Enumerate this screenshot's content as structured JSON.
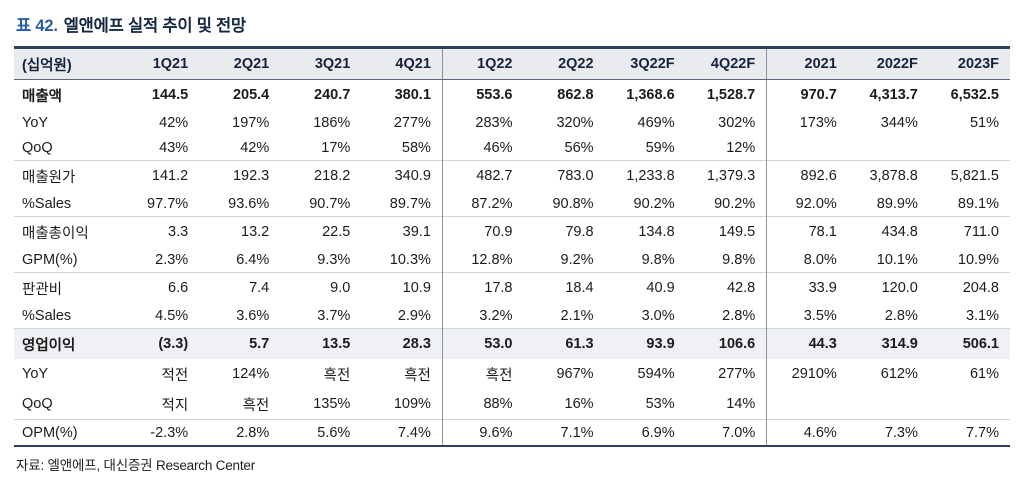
{
  "title": {
    "prefix": "표 42.",
    "text": "엘앤에프 실적 추이 및 전망"
  },
  "table": {
    "unit_header": "(십억원)",
    "columns": [
      "1Q21",
      "2Q21",
      "3Q21",
      "4Q21",
      "1Q22",
      "2Q22",
      "3Q22F",
      "4Q22F",
      "2021",
      "2022F",
      "2023F"
    ],
    "divider_after_columns": [
      3,
      7
    ],
    "rows": [
      {
        "label": "매출액",
        "bold": true,
        "sep": false,
        "highlight": false,
        "values": [
          "144.5",
          "205.4",
          "240.7",
          "380.1",
          "553.6",
          "862.8",
          "1,368.6",
          "1,528.7",
          "970.7",
          "4,313.7",
          "6,532.5"
        ]
      },
      {
        "label": "YoY",
        "bold": false,
        "sep": false,
        "highlight": false,
        "values": [
          "42%",
          "197%",
          "186%",
          "277%",
          "283%",
          "320%",
          "469%",
          "302%",
          "173%",
          "344%",
          "51%"
        ]
      },
      {
        "label": "QoQ",
        "bold": false,
        "sep": false,
        "highlight": false,
        "values": [
          "43%",
          "42%",
          "17%",
          "58%",
          "46%",
          "56%",
          "59%",
          "12%",
          "",
          "",
          ""
        ]
      },
      {
        "label": "매출원가",
        "bold": false,
        "sep": true,
        "highlight": false,
        "values": [
          "141.2",
          "192.3",
          "218.2",
          "340.9",
          "482.7",
          "783.0",
          "1,233.8",
          "1,379.3",
          "892.6",
          "3,878.8",
          "5,821.5"
        ]
      },
      {
        "label": "%Sales",
        "bold": false,
        "sep": false,
        "highlight": false,
        "values": [
          "97.7%",
          "93.6%",
          "90.7%",
          "89.7%",
          "87.2%",
          "90.8%",
          "90.2%",
          "90.2%",
          "92.0%",
          "89.9%",
          "89.1%"
        ]
      },
      {
        "label": "매출총이익",
        "bold": false,
        "sep": true,
        "highlight": false,
        "values": [
          "3.3",
          "13.2",
          "22.5",
          "39.1",
          "70.9",
          "79.8",
          "134.8",
          "149.5",
          "78.1",
          "434.8",
          "711.0"
        ]
      },
      {
        "label": "GPM(%)",
        "bold": false,
        "sep": false,
        "highlight": false,
        "values": [
          "2.3%",
          "6.4%",
          "9.3%",
          "10.3%",
          "12.8%",
          "9.2%",
          "9.8%",
          "9.8%",
          "8.0%",
          "10.1%",
          "10.9%"
        ]
      },
      {
        "label": "판관비",
        "bold": false,
        "sep": true,
        "highlight": false,
        "values": [
          "6.6",
          "7.4",
          "9.0",
          "10.9",
          "17.8",
          "18.4",
          "40.9",
          "42.8",
          "33.9",
          "120.0",
          "204.8"
        ]
      },
      {
        "label": "%Sales",
        "bold": false,
        "sep": false,
        "highlight": false,
        "values": [
          "4.5%",
          "3.6%",
          "3.7%",
          "2.9%",
          "3.2%",
          "2.1%",
          "3.0%",
          "2.8%",
          "3.5%",
          "2.8%",
          "3.1%"
        ]
      },
      {
        "label": "영업이익",
        "bold": true,
        "sep": true,
        "highlight": true,
        "values": [
          "(3.3)",
          "5.7",
          "13.5",
          "28.3",
          "53.0",
          "61.3",
          "93.9",
          "106.6",
          "44.3",
          "314.9",
          "506.1"
        ]
      },
      {
        "label": "YoY",
        "bold": false,
        "sep": false,
        "highlight": false,
        "values": [
          "적전",
          "124%",
          "흑전",
          "흑전",
          "흑전",
          "967%",
          "594%",
          "277%",
          "2910%",
          "612%",
          "61%"
        ]
      },
      {
        "label": "QoQ",
        "bold": false,
        "sep": false,
        "highlight": false,
        "values": [
          "적지",
          "흑전",
          "135%",
          "109%",
          "88%",
          "16%",
          "53%",
          "14%",
          "",
          "",
          ""
        ]
      },
      {
        "label": "OPM(%)",
        "bold": false,
        "sep": true,
        "highlight": false,
        "values": [
          "-2.3%",
          "2.8%",
          "5.6%",
          "7.4%",
          "9.6%",
          "7.1%",
          "6.9%",
          "7.0%",
          "4.6%",
          "7.3%",
          "7.7%"
        ]
      }
    ]
  },
  "source": "자료: 엘앤에프, 대신증권 Research Center"
}
